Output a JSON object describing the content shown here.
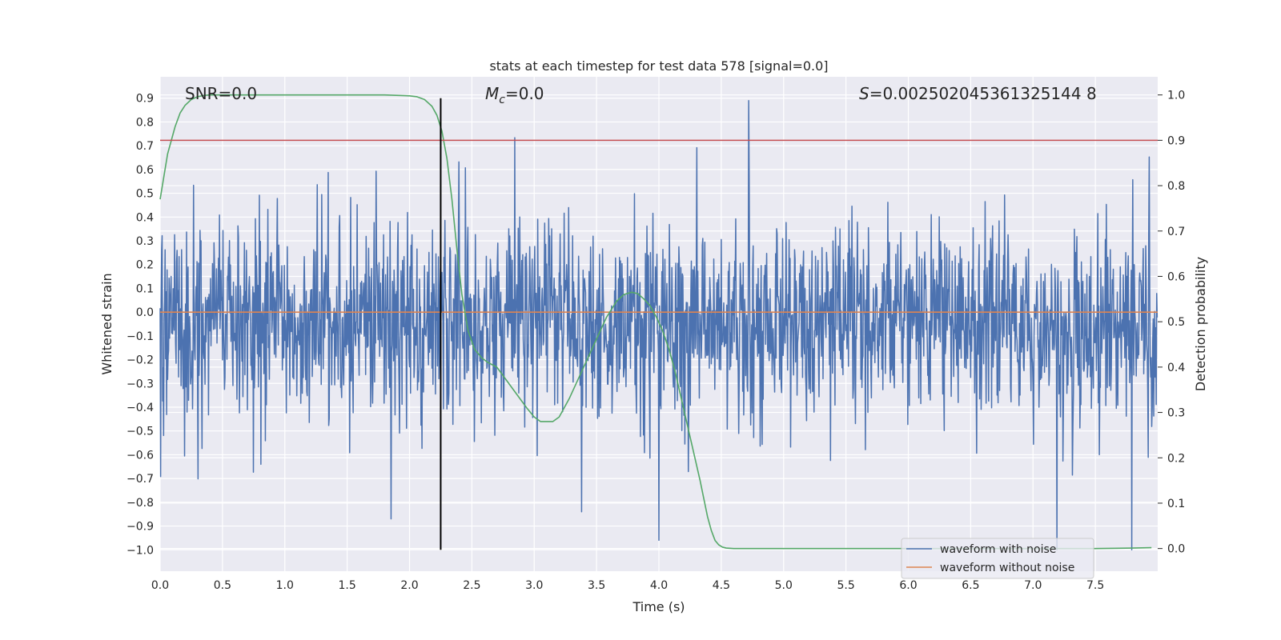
{
  "chart_data": {
    "type": "line",
    "title": "stats at each timestep for test data 578 [signal=0.0]",
    "xlabel": "Time (s)",
    "ylabel": "Whitened strain",
    "y2label": "Detection probability",
    "xlim": [
      0.0,
      8.0
    ],
    "ylim": [
      -1.09,
      0.99
    ],
    "y2lim": [
      -0.05,
      1.04
    ],
    "xticks": [
      0.0,
      0.5,
      1.0,
      1.5,
      2.0,
      2.5,
      3.0,
      3.5,
      4.0,
      4.5,
      5.0,
      5.5,
      6.0,
      6.5,
      7.0,
      7.5
    ],
    "xtick_labels": [
      "0.0",
      "0.5",
      "1.0",
      "1.5",
      "2.0",
      "2.5",
      "3.0",
      "3.5",
      "4.0",
      "4.5",
      "5.0",
      "5.5",
      "6.0",
      "6.5",
      "7.0",
      "7.5"
    ],
    "yticks": [
      0.9,
      0.8,
      0.7,
      0.6,
      0.5,
      0.4,
      0.3,
      0.2,
      0.1,
      0.0,
      -0.1,
      -0.2,
      -0.3,
      -0.4,
      -0.5,
      -0.6,
      -0.7,
      -0.8,
      -0.9,
      -1.0
    ],
    "ytick_labels": [
      "0.9",
      "0.8",
      "0.7",
      "0.6",
      "0.5",
      "0.4",
      "0.3",
      "0.2",
      "0.1",
      "0.0",
      "−0.1",
      "−0.2",
      "−0.3",
      "−0.4",
      "−0.5",
      "−0.6",
      "−0.7",
      "−0.8",
      "−0.9",
      "−1.0"
    ],
    "y2ticks": [
      1.0,
      0.9,
      0.8,
      0.7,
      0.6,
      0.5,
      0.4,
      0.3,
      0.2,
      0.1,
      0.0
    ],
    "y2tick_labels": [
      "1.0",
      "0.9",
      "0.8",
      "0.7",
      "0.6",
      "0.5",
      "0.4",
      "0.3",
      "0.2",
      "0.1",
      "0.0"
    ],
    "grid": true,
    "annotations": {
      "snr": "SNR=0.0",
      "mc_symbol": "M",
      "mc_sub": "c",
      "mc_value": "=0.0",
      "s_symbol": "S",
      "s_value": "=0.002502045361325144 8"
    },
    "series": [
      {
        "name": "waveform with noise",
        "axis": "left",
        "color": "#4c72b0",
        "description_values": {
          "core_band": [
            -0.43,
            0.33
          ],
          "typical_peaks": [
            0.64,
            -0.63
          ],
          "max_value": 0.89,
          "max_time": 4.72,
          "min_value": -1.0,
          "min_times": [
            7.19,
            7.79
          ],
          "samples": 2000,
          "seed": 578
        }
      },
      {
        "name": "waveform without noise",
        "axis": "left",
        "color": "#dd8452",
        "x": [
          0.0,
          8.0
        ],
        "y": [
          0.0,
          0.0
        ]
      },
      {
        "name": "detection probability",
        "axis": "right",
        "color": "#55a868",
        "x": [
          0.0,
          0.03,
          0.06,
          0.09,
          0.12,
          0.16,
          0.2,
          0.25,
          0.3,
          0.35,
          0.4,
          0.6,
          1.0,
          1.5,
          1.8,
          2.0,
          2.06,
          2.12,
          2.18,
          2.22,
          2.26,
          2.3,
          2.34,
          2.38,
          2.42,
          2.47,
          2.52,
          2.58,
          2.63,
          2.7,
          2.78,
          2.86,
          2.94,
          3.0,
          3.05,
          3.1,
          3.15,
          3.2,
          3.28,
          3.38,
          3.48,
          3.58,
          3.66,
          3.72,
          3.78,
          3.83,
          3.88,
          3.93,
          3.98,
          4.03,
          4.08,
          4.13,
          4.18,
          4.23,
          4.28,
          4.33,
          4.36,
          4.39,
          4.42,
          4.45,
          4.48,
          4.51,
          4.54,
          4.6,
          4.7,
          5.0,
          6.0,
          7.0,
          7.5,
          7.8,
          7.95
        ],
        "y": [
          0.77,
          0.82,
          0.87,
          0.9,
          0.93,
          0.96,
          0.977,
          0.99,
          0.996,
          0.999,
          1.0,
          1.0,
          1.0,
          1.0,
          1.0,
          0.998,
          0.996,
          0.99,
          0.975,
          0.955,
          0.92,
          0.86,
          0.77,
          0.66,
          0.56,
          0.48,
          0.44,
          0.42,
          0.41,
          0.4,
          0.37,
          0.34,
          0.31,
          0.29,
          0.28,
          0.28,
          0.28,
          0.29,
          0.33,
          0.39,
          0.45,
          0.51,
          0.545,
          0.56,
          0.565,
          0.562,
          0.55,
          0.535,
          0.51,
          0.48,
          0.44,
          0.39,
          0.33,
          0.27,
          0.21,
          0.15,
          0.11,
          0.07,
          0.04,
          0.018,
          0.008,
          0.003,
          0.001,
          0.0,
          0.0,
          0.0,
          0.0,
          0.0,
          0.0,
          0.001,
          0.002
        ]
      },
      {
        "name": "threshold",
        "axis": "right",
        "color": "#c44e52",
        "x": [
          0.0,
          8.0
        ],
        "y": [
          0.9,
          0.9
        ]
      },
      {
        "name": "marker",
        "axis": "left",
        "color": "#000000",
        "x": [
          2.25,
          2.25
        ],
        "y": [
          -1.0,
          0.9
        ]
      }
    ],
    "legend": {
      "position": "lower-right",
      "entries": [
        "waveform with noise",
        "waveform without noise"
      ],
      "colors": [
        "#4c72b0",
        "#dd8452"
      ]
    }
  }
}
